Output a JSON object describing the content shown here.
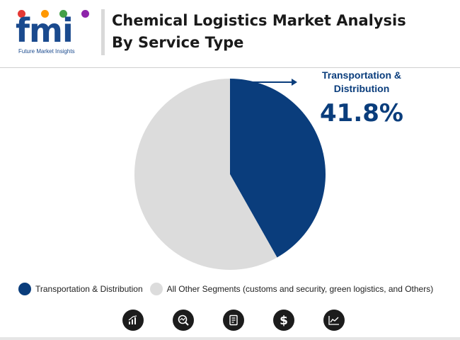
{
  "header": {
    "logo_text": "fmi",
    "logo_subtitle": "Future Market Insights",
    "title_line1": "Chemical Logistics Market Analysis",
    "title_line2": "By Service Type"
  },
  "callout": {
    "label_line1": "Transportation &",
    "label_line2": "Distribution",
    "value": "41.8%"
  },
  "chart_data": {
    "type": "pie",
    "title": "Chemical Logistics Market Analysis By Service Type",
    "categories": [
      "Transportation & Distribution",
      "All Other Segments (customs and security, green logistics, and Others)"
    ],
    "values": [
      41.8,
      58.2
    ],
    "colors": [
      "#0a3d7c",
      "#dcdcdc"
    ],
    "legend_position": "bottom"
  },
  "legend": [
    {
      "label": "Transportation & Distribution",
      "color": "#0a3d7c"
    },
    {
      "label": "All Other Segments (customs and security, green logistics, and Others)",
      "color": "#dcdcdc"
    }
  ],
  "footer_icons": [
    "bar-chart-icon",
    "magnifier-chart-icon",
    "document-icon",
    "dollar-icon",
    "line-chart-icon"
  ],
  "colors": {
    "primary": "#0a3d7c",
    "secondary": "#dcdcdc",
    "logo_dots": [
      "#e53935",
      "#ff9800",
      "#43a047",
      "#8e24aa"
    ]
  }
}
